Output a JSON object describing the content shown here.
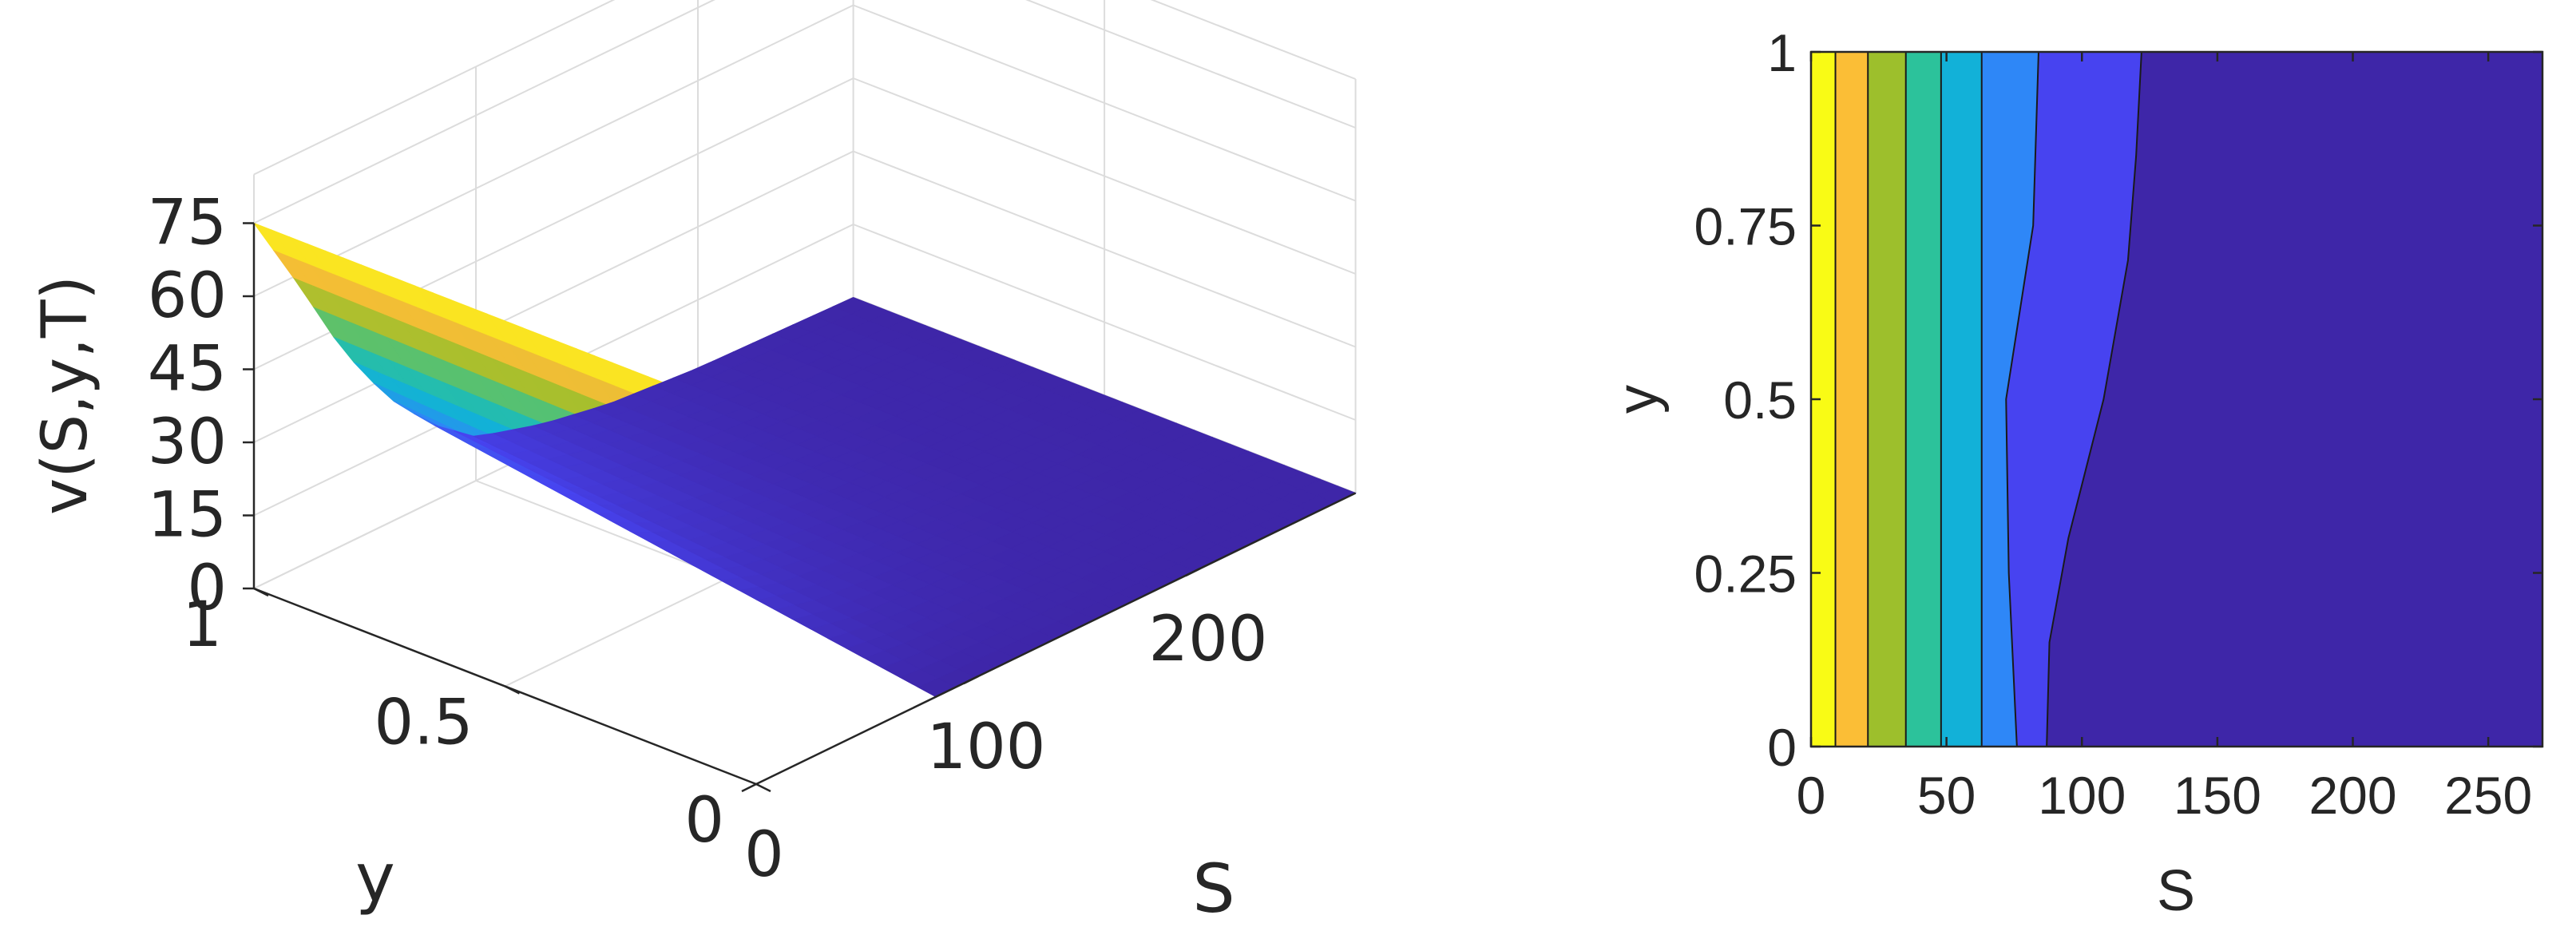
{
  "chart_data": [
    {
      "type": "surface",
      "zlabel": "v(S,y,T)",
      "xlabel": "y",
      "ylabel": "S",
      "z_ticks": [
        "0",
        "15",
        "30",
        "45",
        "60",
        "75"
      ],
      "y_ticks": [
        "1",
        "0.5",
        "0"
      ],
      "s_ticks": [
        "0",
        "100",
        "200"
      ],
      "xlim": [
        0,
        1
      ],
      "slim": [
        0,
        270
      ],
      "zlim": [
        0,
        75
      ],
      "grid": true,
      "colormap": [
        "#3e26a8",
        "#4743f0",
        "#2e87f7",
        "#12b1d8",
        "#2cc29b",
        "#9dbf2c",
        "#fbbe36",
        "#f9fb15"
      ],
      "profile_y1": {
        "S": [
          0,
          20,
          40,
          60,
          80,
          100,
          130,
          160,
          200,
          270
        ],
        "v": [
          75,
          58,
          40,
          26,
          16,
          9,
          5,
          2.5,
          1,
          0
        ]
      },
      "ridge_y0": {
        "S": [
          0,
          80
        ],
        "v": [
          75,
          0
        ]
      }
    },
    {
      "type": "contour",
      "xlabel": "S",
      "ylabel": "y",
      "x_ticks": [
        "0",
        "50",
        "100",
        "150",
        "200",
        "250"
      ],
      "y_ticks": [
        "0",
        "0.25",
        "0.5",
        "0.75",
        "1"
      ],
      "xlim": [
        0,
        270
      ],
      "ylim": [
        0,
        1
      ],
      "bands": [
        {
          "color": "#f9fb15",
          "boundary": {
            "y": [
              0,
              0.5,
              1
            ],
            "S": [
              9,
              9,
              9
            ]
          }
        },
        {
          "color": "#fbbe36",
          "boundary": {
            "y": [
              0,
              0.5,
              1
            ],
            "S": [
              21,
              21,
              21
            ]
          }
        },
        {
          "color": "#9dbf2c",
          "boundary": {
            "y": [
              0,
              0.5,
              1
            ],
            "S": [
              35,
              35,
              35
            ]
          }
        },
        {
          "color": "#2cc29b",
          "boundary": {
            "y": [
              0,
              0.5,
              1
            ],
            "S": [
              48,
              48,
              48
            ]
          }
        },
        {
          "color": "#12b1d8",
          "boundary": {
            "y": [
              0,
              0.5,
              1
            ],
            "S": [
              63,
              63,
              63
            ]
          }
        },
        {
          "color": "#2e87f7",
          "boundary": {
            "y": [
              0,
              0.25,
              0.5,
              0.75,
              1
            ],
            "S": [
              76,
              73,
              72,
              82,
              84
            ]
          }
        },
        {
          "color": "#4743f0",
          "boundary": {
            "y": [
              0,
              0.15,
              0.3,
              0.5,
              0.7,
              0.85,
              1
            ],
            "S": [
              87,
              88,
              95,
              108,
              117,
              120,
              122
            ]
          }
        },
        {
          "color": "#3e26a8",
          "boundary": null
        }
      ]
    }
  ]
}
